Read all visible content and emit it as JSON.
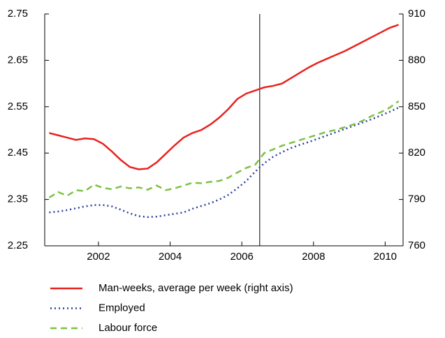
{
  "chart_data": {
    "type": "line",
    "x": [
      2000.625,
      2000.875,
      2001.125,
      2001.375,
      2001.625,
      2001.875,
      2002.125,
      2002.375,
      2002.625,
      2002.875,
      2003.125,
      2003.375,
      2003.625,
      2003.875,
      2004.125,
      2004.375,
      2004.625,
      2004.875,
      2005.125,
      2005.375,
      2005.625,
      2005.875,
      2006.125,
      2006.375,
      2006.625,
      2006.875,
      2007.125,
      2007.375,
      2007.625,
      2007.875,
      2008.125,
      2008.375,
      2008.625,
      2008.875,
      2009.125,
      2009.375,
      2009.625,
      2009.875,
      2010.125,
      2010.375
    ],
    "xlim": [
      2000.5,
      2010.5
    ],
    "xticks": [
      2002,
      2004,
      2006,
      2008,
      2010
    ],
    "ylim": [
      2.25,
      2.75
    ],
    "yticks": [
      2.25,
      2.35,
      2.45,
      2.55,
      2.65,
      2.75
    ],
    "y2lim": [
      760,
      910
    ],
    "y2ticks": [
      760,
      790,
      820,
      850,
      880,
      910
    ],
    "vline": 2006.5,
    "series": [
      {
        "name": "Man-weeks, average per week (right axis)",
        "color": "#e8221f",
        "dash": "solid",
        "axis": "y2",
        "values": [
          833,
          831.5,
          830,
          828.5,
          829.5,
          829,
          826,
          821,
          815.5,
          811,
          809.5,
          810,
          814,
          819.5,
          825,
          830,
          833,
          835,
          838.5,
          843,
          848.5,
          855,
          858.5,
          860.5,
          862.5,
          863.5,
          865,
          868.5,
          872,
          875.5,
          878.5,
          881,
          883.5,
          886,
          889,
          892,
          895,
          898,
          901,
          903
        ]
      },
      {
        "name": "Employed",
        "color": "#2a3f9c",
        "dash": "dotted",
        "values": [
          2.322,
          2.324,
          2.327,
          2.331,
          2.335,
          2.338,
          2.338,
          2.335,
          2.328,
          2.32,
          2.314,
          2.312,
          2.313,
          2.316,
          2.319,
          2.322,
          2.33,
          2.336,
          2.342,
          2.35,
          2.36,
          2.374,
          2.39,
          2.41,
          2.428,
          2.442,
          2.452,
          2.461,
          2.468,
          2.474,
          2.481,
          2.488,
          2.495,
          2.502,
          2.509,
          2.516,
          2.523,
          2.531,
          2.539,
          2.548
        ]
      },
      {
        "name": "Labour force",
        "color": "#7cc242",
        "dash": "dashed",
        "values": [
          2.354,
          2.366,
          2.358,
          2.37,
          2.368,
          2.382,
          2.375,
          2.372,
          2.378,
          2.374,
          2.376,
          2.371,
          2.38,
          2.37,
          2.374,
          2.38,
          2.386,
          2.385,
          2.388,
          2.39,
          2.397,
          2.408,
          2.418,
          2.425,
          2.45,
          2.458,
          2.466,
          2.472,
          2.478,
          2.484,
          2.49,
          2.496,
          2.5,
          2.506,
          2.512,
          2.52,
          2.53,
          2.538,
          2.548,
          2.562
        ]
      }
    ]
  }
}
